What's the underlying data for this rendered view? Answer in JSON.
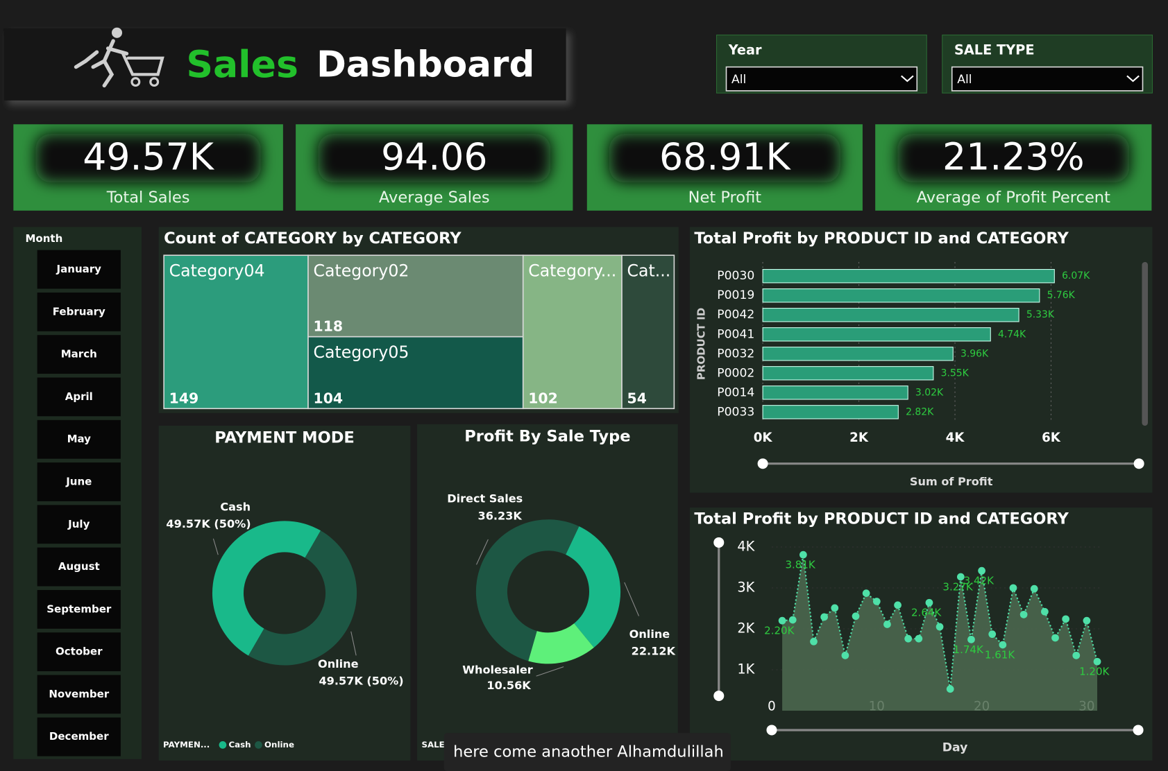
{
  "header": {
    "title_highlight": "Sales",
    "title_rest": "Dashboard"
  },
  "filters": [
    {
      "label": "Year",
      "value": "All"
    },
    {
      "label": "SALE TYPE",
      "value": "All"
    }
  ],
  "kpis": [
    {
      "value": "49.57K",
      "label": "Total Sales"
    },
    {
      "value": "94.06",
      "label": "Average Sales"
    },
    {
      "value": "68.91K",
      "label": "Net Profit"
    },
    {
      "value": "21.23%",
      "label": "Average of Profit Percent"
    }
  ],
  "month_slicer": {
    "title": "Month",
    "items": [
      "January",
      "February",
      "March",
      "April",
      "May",
      "June",
      "July",
      "August",
      "September",
      "October",
      "November",
      "December"
    ]
  },
  "caption": "here come anaother Alhamdulillah",
  "chart_data": [
    {
      "type": "treemap",
      "title": "Count of CATEGORY by CATEGORY",
      "categories": [
        "Category04",
        "Category02",
        "Category05",
        "Category...",
        "Cat..."
      ],
      "values": [
        149,
        118,
        104,
        102,
        54
      ],
      "colors": [
        "#2c9c7c",
        "#6b8a72",
        "#13594a",
        "#86b585",
        "#2e4a3b"
      ]
    },
    {
      "type": "donut",
      "title": "PAYMENT MODE",
      "legend_title": "PAYMEN...",
      "categories": [
        "Cash",
        "Online"
      ],
      "values": [
        49570,
        49570
      ],
      "value_labels": [
        "49.57K (50%)",
        "49.57K (50%)"
      ],
      "colors": [
        "#19b98a",
        "#1d5744"
      ]
    },
    {
      "type": "donut",
      "title": "Profit By Sale Type",
      "legend_title": "SALE TY...",
      "categories": [
        "Direct Sales",
        "Online",
        "Wholesaler"
      ],
      "values": [
        36230,
        22120,
        10560
      ],
      "value_labels": [
        "36.23K",
        "22.12K",
        "10.56K"
      ],
      "colors": [
        "#1d5744",
        "#19b98a",
        "#5ef07a"
      ]
    },
    {
      "type": "hbar",
      "title": "Total Profit by PRODUCT ID and CATEGORY",
      "y_label": "PRODUCT ID",
      "x_label": "Sum of Profit",
      "categories": [
        "P0030",
        "P0019",
        "P0042",
        "P0041",
        "P0032",
        "P0002",
        "P0014",
        "P0033"
      ],
      "values": [
        6070,
        5760,
        5330,
        4740,
        3960,
        3550,
        3020,
        2820
      ],
      "value_labels": [
        "6.07K",
        "5.76K",
        "5.33K",
        "4.74K",
        "3.96K",
        "3.55K",
        "3.02K",
        "2.82K"
      ],
      "color": "#2a9d78",
      "xlim": [
        0,
        7000
      ],
      "xticks": [
        {
          "value": 0,
          "label": "0K"
        },
        {
          "value": 2000,
          "label": "2K"
        },
        {
          "value": 4000,
          "label": "4K"
        },
        {
          "value": 6000,
          "label": "6K"
        }
      ],
      "grid": true
    },
    {
      "type": "area",
      "title": "Total Profit by PRODUCT ID and CATEGORY",
      "x_label": "Day",
      "x": [
        1,
        2,
        3,
        4,
        5,
        6,
        7,
        8,
        9,
        10,
        11,
        12,
        13,
        14,
        15,
        16,
        17,
        18,
        19,
        20,
        21,
        22,
        23,
        24,
        25,
        26,
        27,
        28,
        29,
        30,
        31
      ],
      "values": [
        2200,
        2220,
        3810,
        1690,
        2290,
        2510,
        1350,
        2310,
        2870,
        2670,
        2110,
        2580,
        1760,
        1760,
        2640,
        2050,
        530,
        3270,
        1740,
        3420,
        1870,
        1610,
        3000,
        2350,
        2980,
        2420,
        1780,
        2240,
        1350,
        2200,
        1200
      ],
      "value_labels": [
        "2.20K",
        null,
        "3.81K",
        null,
        null,
        null,
        null,
        null,
        null,
        null,
        null,
        null,
        null,
        null,
        "2.64K",
        null,
        null,
        "3.27K",
        "1.74K",
        "3.42K",
        null,
        "1.61K",
        null,
        null,
        null,
        null,
        null,
        null,
        null,
        null,
        "1.20K"
      ],
      "color": "#4fe0a8",
      "xlim": [
        0,
        31
      ],
      "xticks": [
        0,
        10,
        20,
        30
      ],
      "ylim": [
        0,
        4100
      ],
      "yticks": [
        {
          "value": 1000,
          "label": "1K"
        },
        {
          "value": 2000,
          "label": "2K"
        },
        {
          "value": 3000,
          "label": "3K"
        },
        {
          "value": 4000,
          "label": "4K"
        }
      ]
    }
  ]
}
